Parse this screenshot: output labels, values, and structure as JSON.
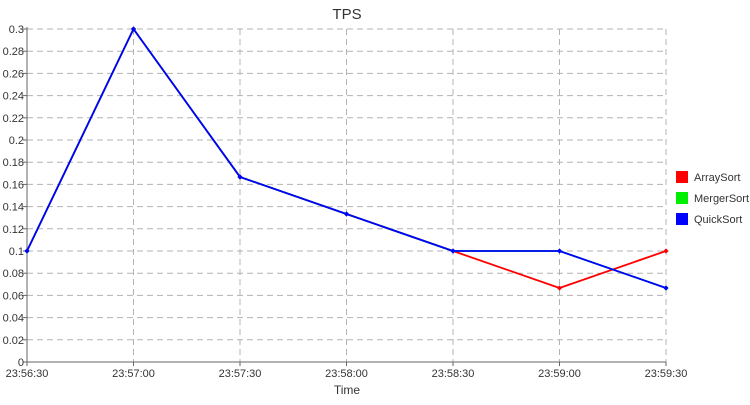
{
  "chart_data": {
    "type": "line",
    "title": "TPS",
    "xlabel": "Time",
    "ylabel": "",
    "x": [
      "23:56:30",
      "23:57:00",
      "23:57:30",
      "23:58:00",
      "23:58:30",
      "23:59:00",
      "23:59:30"
    ],
    "y_ticks": [
      "0",
      "0.02",
      "0.04",
      "0.06",
      "0.08",
      "0.1",
      "0.12",
      "0.14",
      "0.16",
      "0.18",
      "0.2",
      "0.22",
      "0.24",
      "0.26",
      "0.28",
      "0.3"
    ],
    "ylim": [
      0,
      0.3
    ],
    "grid": true,
    "legend_position": "right",
    "series": [
      {
        "name": "ArraySort",
        "color": "#ff0000",
        "values": [
          0.1,
          0.3,
          0.1667,
          0.1333,
          0.1,
          0.0667,
          0.1
        ]
      },
      {
        "name": "MergerSort",
        "color": "#00ee00",
        "values": [
          0.1,
          0.3,
          0.1667,
          0.1333,
          0.1,
          0.1,
          0.0667
        ]
      },
      {
        "name": "QuickSort",
        "color": "#0000ff",
        "values": [
          0.1,
          0.3,
          0.1667,
          0.1333,
          0.1,
          0.1,
          0.0667
        ]
      }
    ]
  }
}
